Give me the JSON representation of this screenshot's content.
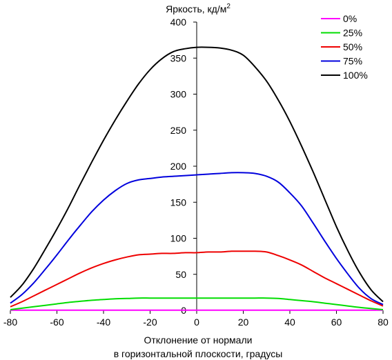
{
  "chart_data": {
    "type": "line",
    "ylabel": "Яркость, кд/м",
    "ylabel_sup": "2",
    "xlabel_line1": "Отклонение от нормали",
    "xlabel_line2": "в горизонтальной плоскости, градусы",
    "xlim": [
      -80,
      80
    ],
    "ylim": [
      0,
      400
    ],
    "x_ticks": [
      -80,
      -60,
      -40,
      -20,
      0,
      20,
      40,
      60,
      80
    ],
    "y_ticks": [
      0,
      50,
      100,
      150,
      200,
      250,
      300,
      350,
      400
    ],
    "x_tick_labels": [
      "-80",
      "-60",
      "-40",
      "-20",
      "0",
      "20",
      "40",
      "60",
      "80"
    ],
    "y_tick_labels": [
      "0",
      "50",
      "100",
      "150",
      "200",
      "250",
      "300",
      "350",
      "400"
    ],
    "grid": false,
    "legend_position": "top-right",
    "x": [
      -80,
      -75,
      -70,
      -65,
      -60,
      -55,
      -50,
      -45,
      -40,
      -35,
      -30,
      -25,
      -20,
      -15,
      -10,
      -5,
      0,
      5,
      10,
      15,
      20,
      25,
      30,
      35,
      40,
      45,
      50,
      55,
      60,
      65,
      70,
      75,
      80
    ],
    "series": [
      {
        "name": "0%",
        "color": "#ff00ff",
        "values": [
          0.3,
          0.3,
          0.3,
          0.3,
          0.3,
          0.3,
          0.3,
          0.3,
          0.3,
          0.3,
          0.3,
          0.3,
          0.3,
          0.3,
          0.3,
          0.3,
          0.3,
          0.3,
          0.3,
          0.3,
          0.3,
          0.3,
          0.3,
          0.3,
          0.3,
          0.3,
          0.3,
          0.3,
          0.3,
          0.3,
          0.3,
          0.3,
          0.3
        ]
      },
      {
        "name": "25%",
        "color": "#00dd00",
        "values": [
          1,
          3,
          5,
          7,
          9,
          11,
          12.5,
          14,
          15,
          16,
          16.5,
          17,
          17,
          17,
          17,
          17,
          17,
          17,
          17,
          17,
          17,
          17,
          17,
          16.5,
          15,
          13.5,
          12,
          10,
          8,
          6,
          4,
          2.5,
          1
        ]
      },
      {
        "name": "50%",
        "color": "#ee0000",
        "values": [
          5,
          12,
          20,
          28,
          36,
          44,
          52,
          59,
          65,
          70,
          74,
          77,
          78,
          79,
          79,
          80,
          80,
          81,
          81,
          82,
          82,
          82,
          81,
          76,
          70,
          63,
          54,
          45,
          37,
          29,
          21,
          13,
          6
        ]
      },
      {
        "name": "75%",
        "color": "#0000dd",
        "values": [
          10,
          22,
          38,
          57,
          77,
          98,
          118,
          137,
          153,
          166,
          176,
          181,
          183,
          185,
          186,
          187,
          188,
          189,
          190,
          191,
          191,
          190,
          186,
          178,
          163,
          145,
          121,
          96,
          72,
          50,
          30,
          16,
          8
        ]
      },
      {
        "name": "100%",
        "color": "#000000",
        "values": [
          18,
          35,
          58,
          85,
          113,
          143,
          175,
          206,
          236,
          264,
          290,
          314,
          334,
          349,
          359,
          363,
          365,
          365,
          364,
          361,
          354,
          338,
          318,
          292,
          262,
          228,
          192,
          154,
          116,
          82,
          52,
          28,
          12
        ]
      }
    ]
  }
}
